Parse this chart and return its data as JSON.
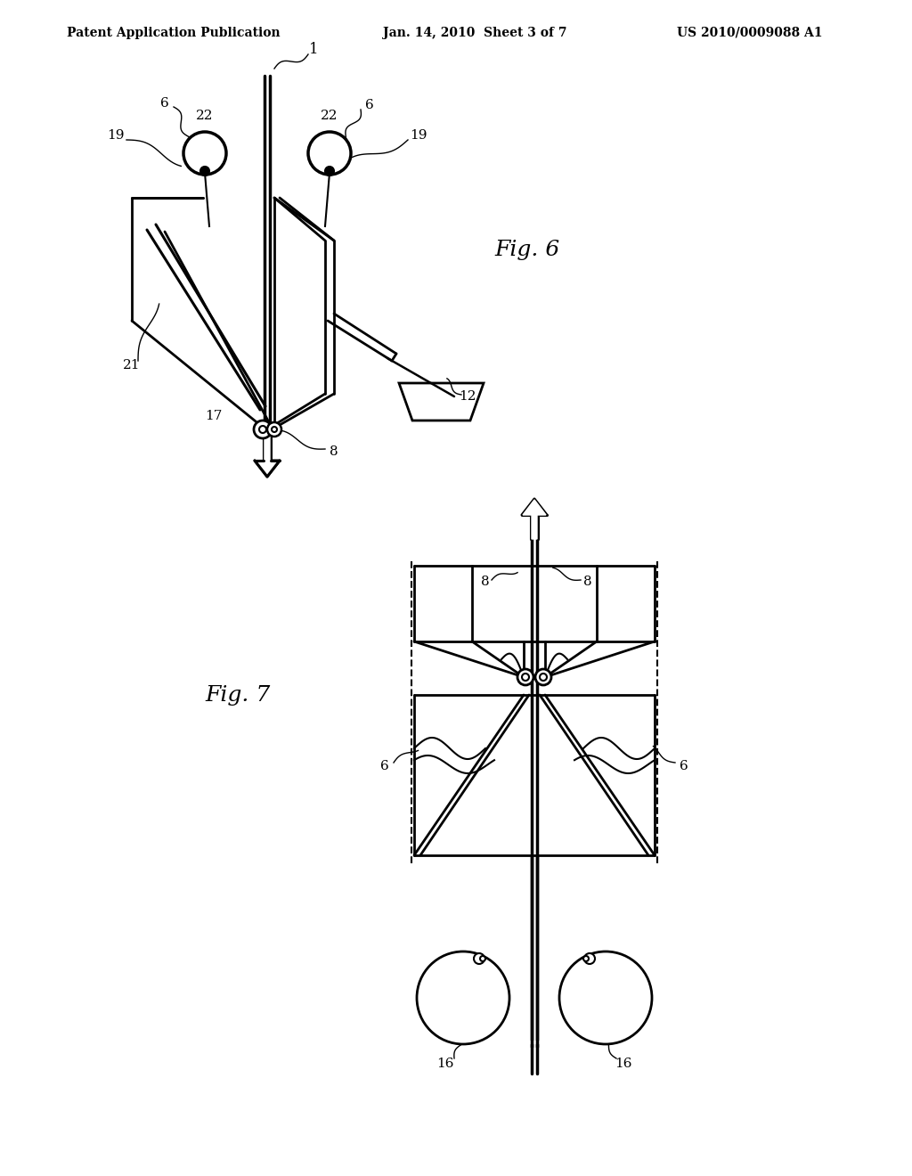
{
  "title_left": "Patent Application Publication",
  "title_mid": "Jan. 14, 2010  Sheet 3 of 7",
  "title_right": "US 2010/0009088 A1",
  "bg_color": "#ffffff"
}
